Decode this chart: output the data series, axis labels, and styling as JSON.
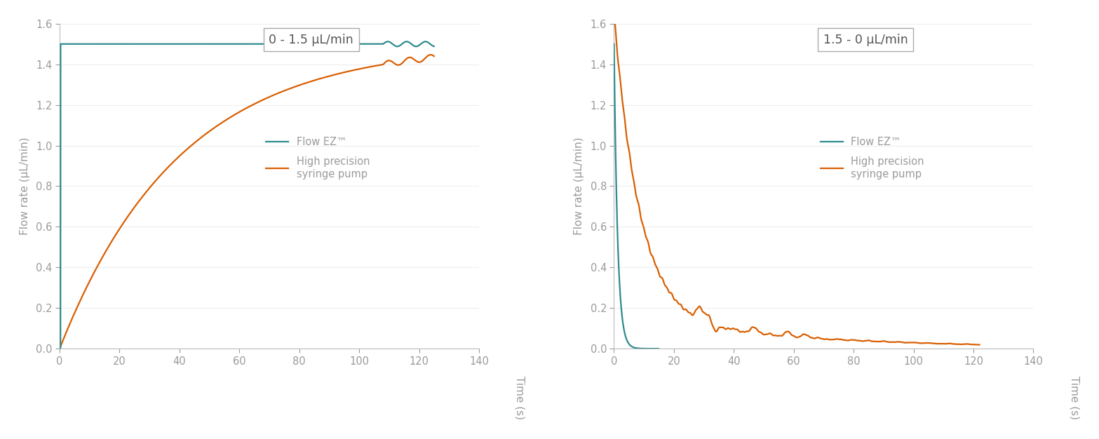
{
  "background_color": "#ffffff",
  "text_color": "#9a9a9a",
  "teal_color": "#2e8b8e",
  "orange_color": "#d95f02",
  "ylabel": "Flow rate (μL/min)",
  "xlabel": "Time (s)",
  "ylim": [
    0,
    1.6
  ],
  "xlim": [
    0,
    140
  ],
  "yticks": [
    0,
    0.2,
    0.4,
    0.6,
    0.8,
    1.0,
    1.2,
    1.4,
    1.6
  ],
  "xticks": [
    0,
    20,
    40,
    60,
    80,
    100,
    120,
    140
  ],
  "plot1_title": "0 - 1.5 μL/min",
  "plot2_title": "1.5 - 0 μL/min",
  "legend_line1": "Flow EZ™",
  "legend_line2": "High precision\nsyringe pump",
  "line_width": 1.6,
  "axis_color": "#bbbbbb",
  "grid_color": "#eeeeee"
}
